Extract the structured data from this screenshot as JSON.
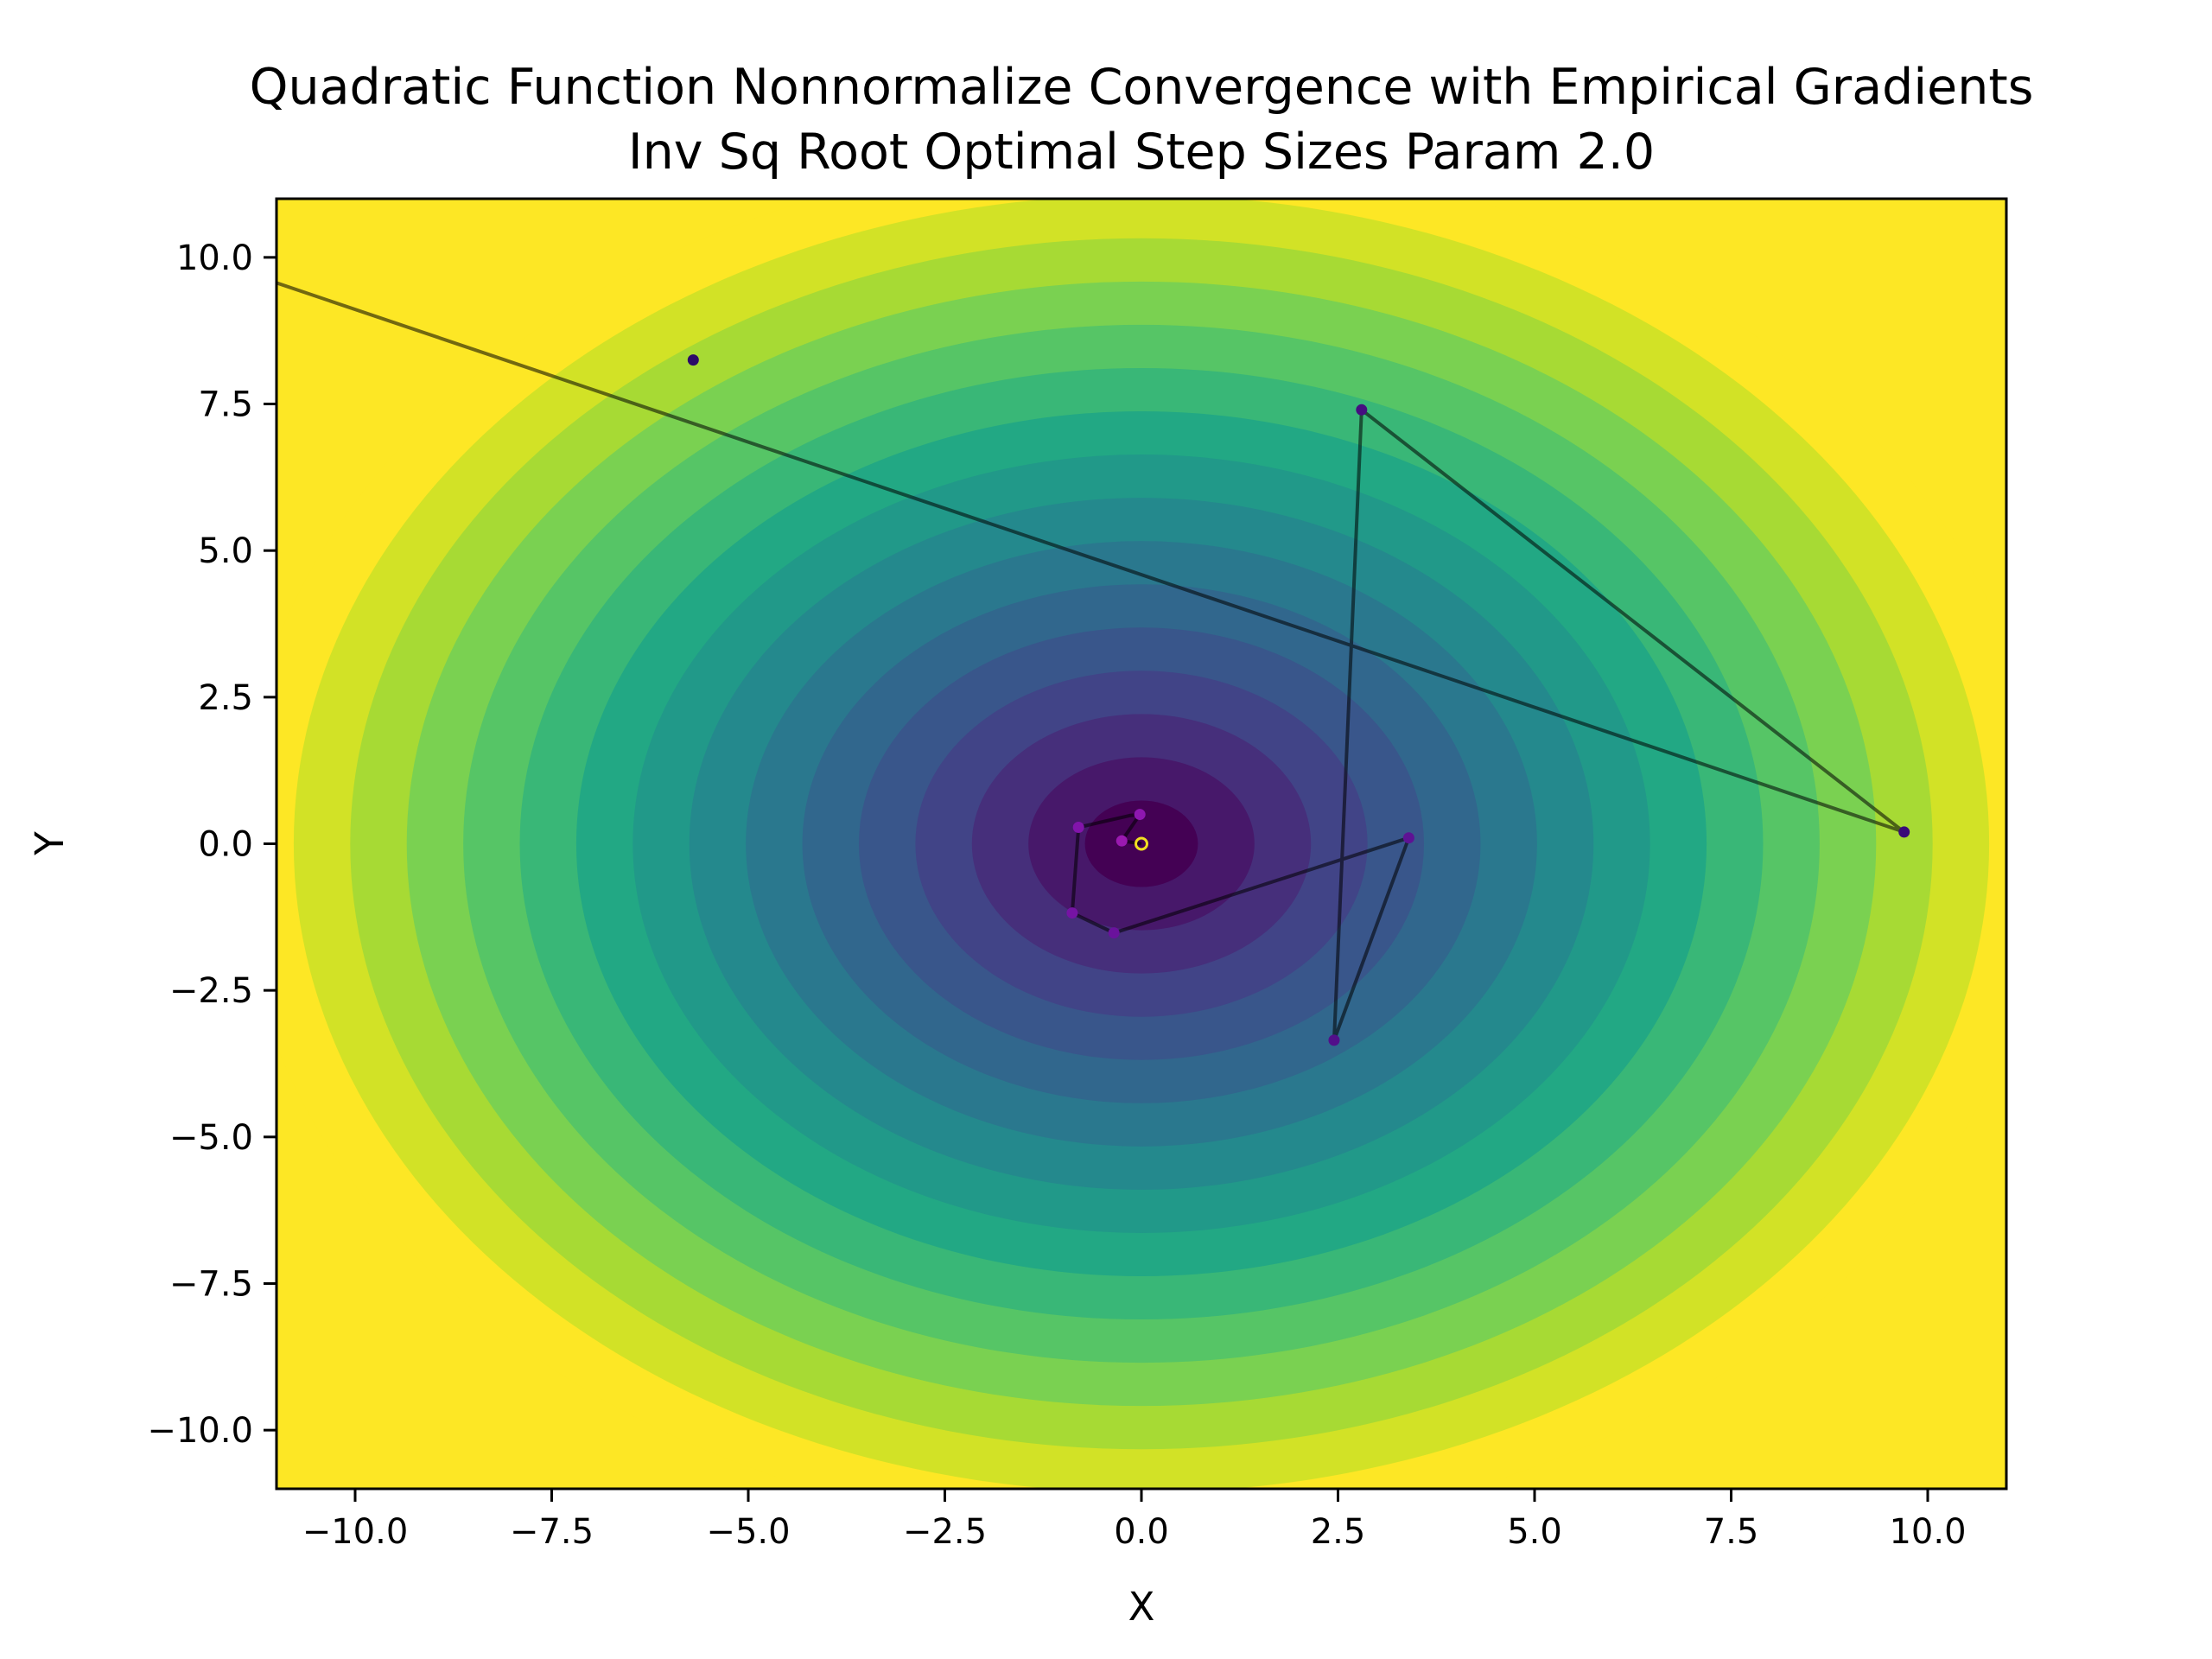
{
  "chart_data": {
    "type": "line",
    "title_lines": [
      "Quadratic Function Nonnormalize Convergence with Empirical Gradients",
      "Inv Sq Root Optimal Step Sizes Param 2.0"
    ],
    "xlabel": "X",
    "ylabel": "Y",
    "xlim": [
      -11,
      11
    ],
    "ylim": [
      -11,
      11
    ],
    "x_ticks": [
      -10.0,
      -7.5,
      -5.0,
      -2.5,
      0.0,
      2.5,
      5.0,
      7.5,
      10.0
    ],
    "y_ticks": [
      -10.0,
      -7.5,
      -5.0,
      -2.5,
      0.0,
      2.5,
      5.0,
      7.5,
      10.0
    ],
    "x_tick_labels": [
      "−10.0",
      "−7.5",
      "−5.0",
      "−2.5",
      "0.0",
      "2.5",
      "5.0",
      "7.5",
      "10.0"
    ],
    "y_tick_labels": [
      "−10.0",
      "−7.5",
      "−5.0",
      "−2.5",
      "0.0",
      "2.5",
      "5.0",
      "7.5",
      "10.0"
    ],
    "grid": false,
    "background": {
      "type": "contourf",
      "function": "quadratic, minimum at (0, 0)",
      "colormap": "viridis",
      "levels": 16
    },
    "path_color": "#000000",
    "path": [
      {
        "x": -11.3,
        "y": 9.7
      },
      {
        "x": 9.7,
        "y": 0.2
      },
      {
        "x": 2.8,
        "y": 7.4
      },
      {
        "x": 2.45,
        "y": -3.35
      },
      {
        "x": 3.4,
        "y": 0.1
      },
      {
        "x": -0.35,
        "y": -1.52
      },
      {
        "x": -0.88,
        "y": -1.18
      },
      {
        "x": -0.8,
        "y": 0.28
      },
      {
        "x": -0.15,
        "y": 0.48
      },
      {
        "x": -0.02,
        "y": 0.5
      },
      {
        "x": -0.25,
        "y": 0.05
      },
      {
        "x": 0.0,
        "y": 0.0
      }
    ],
    "points": [
      {
        "x": -5.7,
        "y": 8.25,
        "color": "#2c0a68"
      },
      {
        "x": 9.7,
        "y": 0.2,
        "color": "#3a0b78"
      },
      {
        "x": 2.8,
        "y": 7.4,
        "color": "#450e80"
      },
      {
        "x": 2.45,
        "y": -3.35,
        "color": "#520f8a"
      },
      {
        "x": 3.4,
        "y": 0.1,
        "color": "#5e1294"
      },
      {
        "x": -0.35,
        "y": -1.52,
        "color": "#6a129c"
      },
      {
        "x": -0.88,
        "y": -1.18,
        "color": "#7613a4"
      },
      {
        "x": -0.8,
        "y": 0.28,
        "color": "#8214aa"
      },
      {
        "x": -0.02,
        "y": 0.5,
        "color": "#8e17b0"
      },
      {
        "x": -0.25,
        "y": 0.05,
        "color": "#9a19b0"
      }
    ],
    "final_point": {
      "x": 0.0,
      "y": 0.0,
      "color": "#f0e020"
    }
  }
}
